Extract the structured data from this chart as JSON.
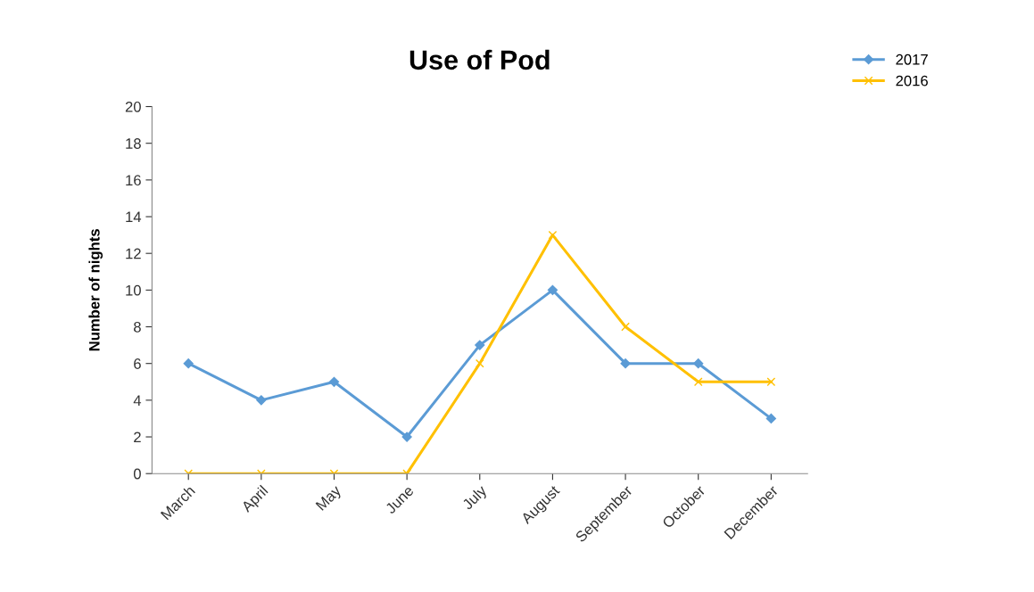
{
  "chart_data": {
    "type": "line",
    "title": "Use of Pod",
    "ylabel": "Number of nights",
    "categories": [
      "March",
      "April",
      "May",
      "June",
      "July",
      "August",
      "September",
      "October",
      "December"
    ],
    "series": [
      {
        "name": "2017",
        "color": "#5b9bd5",
        "marker": "diamond",
        "values": [
          6,
          4,
          5,
          2,
          7,
          10,
          6,
          6,
          3
        ]
      },
      {
        "name": "2016",
        "color": "#ffc000",
        "marker": "cross",
        "values": [
          0,
          0,
          0,
          0,
          6,
          13,
          8,
          5,
          5
        ]
      }
    ],
    "ylim": [
      0,
      20
    ],
    "yticks": [
      0,
      2,
      4,
      6,
      8,
      10,
      12,
      14,
      16,
      18,
      20
    ],
    "grid": false,
    "legend": "top right",
    "line_style": "solid"
  }
}
